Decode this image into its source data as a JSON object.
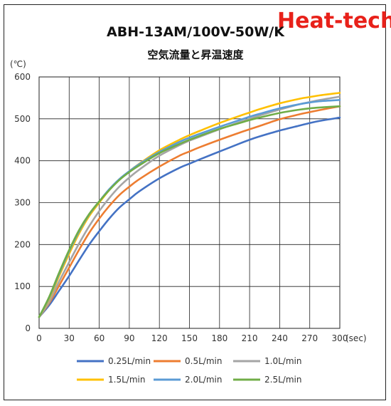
{
  "logo_text": "Heat-tech",
  "chart_data": {
    "type": "line",
    "title": "ABH-13AM/100V-50W/K",
    "subtitle": "空気流量と昇温速度",
    "ylabel": "(℃)",
    "xlabel": "(sec)",
    "xlim": [
      0,
      300
    ],
    "ylim": [
      0,
      600
    ],
    "xticks": [
      0,
      30,
      60,
      90,
      120,
      150,
      180,
      210,
      240,
      270,
      300
    ],
    "yticks": [
      0,
      100,
      200,
      300,
      400,
      500,
      600
    ],
    "grid": true,
    "legend_position": "bottom",
    "x": [
      0,
      10,
      20,
      30,
      40,
      50,
      60,
      70,
      80,
      90,
      100,
      120,
      140,
      150,
      160,
      180,
      200,
      210,
      220,
      240,
      260,
      270,
      280,
      300
    ],
    "series": [
      {
        "name": "0.25L/min",
        "color": "#4472c4",
        "values": [
          27,
          55,
          90,
          125,
          163,
          200,
          232,
          262,
          288,
          308,
          327,
          358,
          383,
          393,
          403,
          422,
          441,
          450,
          458,
          472,
          484,
          490,
          495,
          503
        ]
      },
      {
        "name": "0.5L/min",
        "color": "#ed7d31",
        "values": [
          27,
          60,
          102,
          145,
          188,
          228,
          262,
          292,
          318,
          338,
          356,
          386,
          412,
          422,
          432,
          450,
          467,
          475,
          483,
          499,
          511,
          516,
          521,
          530
        ]
      },
      {
        "name": "1.0L/min",
        "color": "#a5a5a5",
        "values": [
          27,
          63,
          112,
          158,
          203,
          244,
          280,
          311,
          338,
          360,
          379,
          412,
          437,
          448,
          457,
          475,
          492,
          500,
          508,
          522,
          535,
          540,
          545,
          553
        ]
      },
      {
        "name": "1.5L/min",
        "color": "#ffc000",
        "values": [
          27,
          70,
          125,
          178,
          227,
          268,
          300,
          330,
          355,
          375,
          393,
          425,
          450,
          461,
          471,
          490,
          507,
          515,
          523,
          537,
          548,
          552,
          556,
          562
        ]
      },
      {
        "name": "2.0L/min",
        "color": "#5b9bd5",
        "values": [
          27,
          73,
          130,
          184,
          232,
          272,
          303,
          332,
          356,
          375,
          392,
          421,
          445,
          455,
          464,
          481,
          497,
          505,
          512,
          525,
          535,
          539,
          542,
          545
        ]
      },
      {
        "name": "2.5L/min",
        "color": "#70ad47",
        "values": [
          27,
          75,
          133,
          187,
          235,
          273,
          303,
          330,
          354,
          373,
          389,
          418,
          440,
          450,
          459,
          476,
          490,
          497,
          503,
          514,
          522,
          525,
          527,
          530
        ]
      }
    ]
  }
}
